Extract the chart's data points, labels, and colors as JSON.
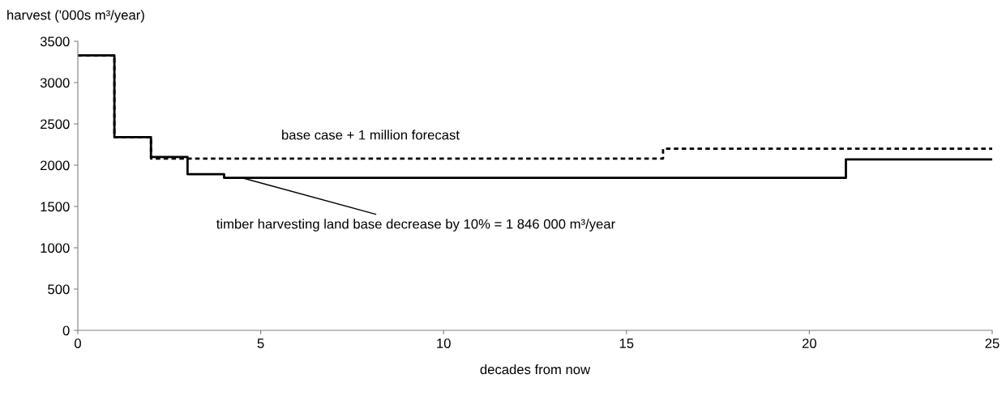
{
  "chart_data": {
    "type": "step",
    "xlabel": "decades from now",
    "ylabel": "harvest ('000s m³/year)",
    "series": [
      {
        "x": [
          0,
          1,
          2,
          16,
          25
        ],
        "values": [
          3330,
          2340,
          2080,
          2200,
          2200
        ],
        "color": "#000000",
        "line_style": "dotted"
      },
      {
        "x": [
          0,
          1,
          2,
          3,
          4,
          21,
          25
        ],
        "values": [
          3330,
          2340,
          2100,
          1890,
          1846,
          2070,
          2070
        ],
        "color": "#000000",
        "line_style": "solid"
      }
    ],
    "xlim": [
      0,
      25
    ],
    "xticks": [
      0,
      5,
      10,
      15,
      20,
      25
    ],
    "ylim": [
      0,
      3500
    ],
    "yticks": [
      0,
      500,
      1000,
      1500,
      2000,
      2500,
      3000,
      3500
    ],
    "grid": false,
    "legend": false,
    "annotations": [
      {
        "text": "base case + 1 million forecast",
        "x": 8,
        "y": 2080
      },
      {
        "text": "timber harvesting land base decrease by 10% = 1 846 000 m³/year",
        "x": 4.5,
        "y": 1846
      }
    ]
  }
}
